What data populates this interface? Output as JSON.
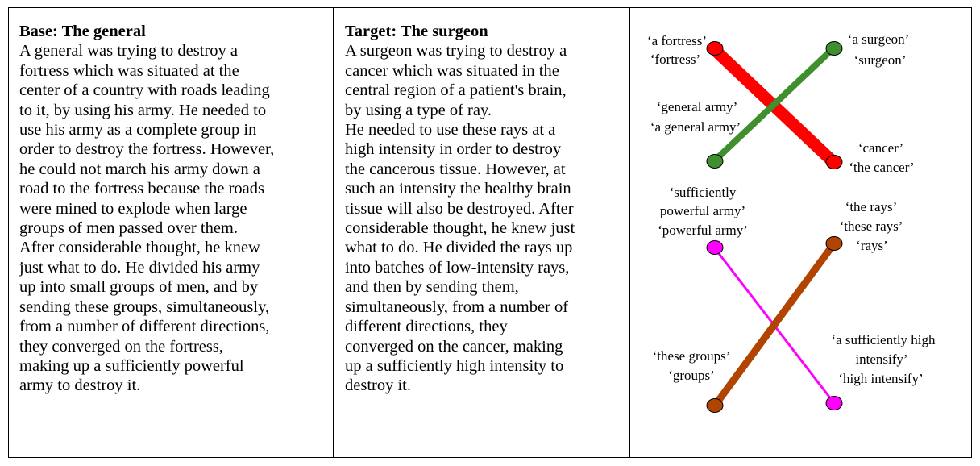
{
  "base": {
    "title": "Base: The general",
    "text": "A general was trying to destroy a\nfortress which was situated at the\ncenter of a country with roads leading\nto it, by using his army. He needed to\nuse his army as a complete group in\norder to destroy the fortress. However,\nhe could not march his army down a\nroad to the fortress because the roads\nwere mined to explode when large\ngroups of men passed over them.\nAfter considerable thought, he knew\njust what to do. He divided his army\nup into small groups of men, and by\nsending these groups, simultaneously,\nfrom a number of different directions,\nthey converged on the fortress,\nmaking up a sufficiently powerful\narmy to destroy it."
  },
  "target": {
    "title": "Target: The surgeon",
    "text": "A surgeon was trying to destroy a\ncancer which was situated in the\ncentral region of a patient's brain,\nby using a type of ray.\nHe needed to use these rays at a\nhigh intensity in order to destroy\nthe cancerous tissue. However, at\nsuch an intensity the healthy brain\ntissue will also be destroyed. After\nconsiderable thought, he knew just\nwhat to do. He divided the rays up\ninto batches of low-intensity rays,\nand then by sending them,\nsimultaneously, from a number of\ndifferent directions, they\nconverged on the cancer, making\nup a sufficiently high intensity to\ndestroy it."
  },
  "diagram": {
    "labels": {
      "fortress_1": "‘a fortress’",
      "fortress_2": "‘fortress’",
      "surgeon_1": "‘a surgeon’",
      "surgeon_2": "‘surgeon’",
      "army_1": "‘general army’",
      "army_2": "‘a general army’",
      "cancer_1": "‘cancer’",
      "cancer_2": "‘the cancer’",
      "powerful_1": "‘sufficiently",
      "powerful_2": "powerful army’",
      "powerful_3": "‘powerful army’",
      "rays_1": "‘the rays’",
      "rays_2": "‘these rays’",
      "rays_3": "‘rays’",
      "groups_1": "‘these groups’",
      "groups_2": "‘groups’",
      "intensity_1": "‘a sufficiently high",
      "intensity_2": "intensify’",
      "intensity_3": "‘high intensify’"
    },
    "colors": {
      "red": "#ff0000",
      "green": "#3f8f2f",
      "magenta": "#ff00ff",
      "brown": "#b04400"
    }
  }
}
